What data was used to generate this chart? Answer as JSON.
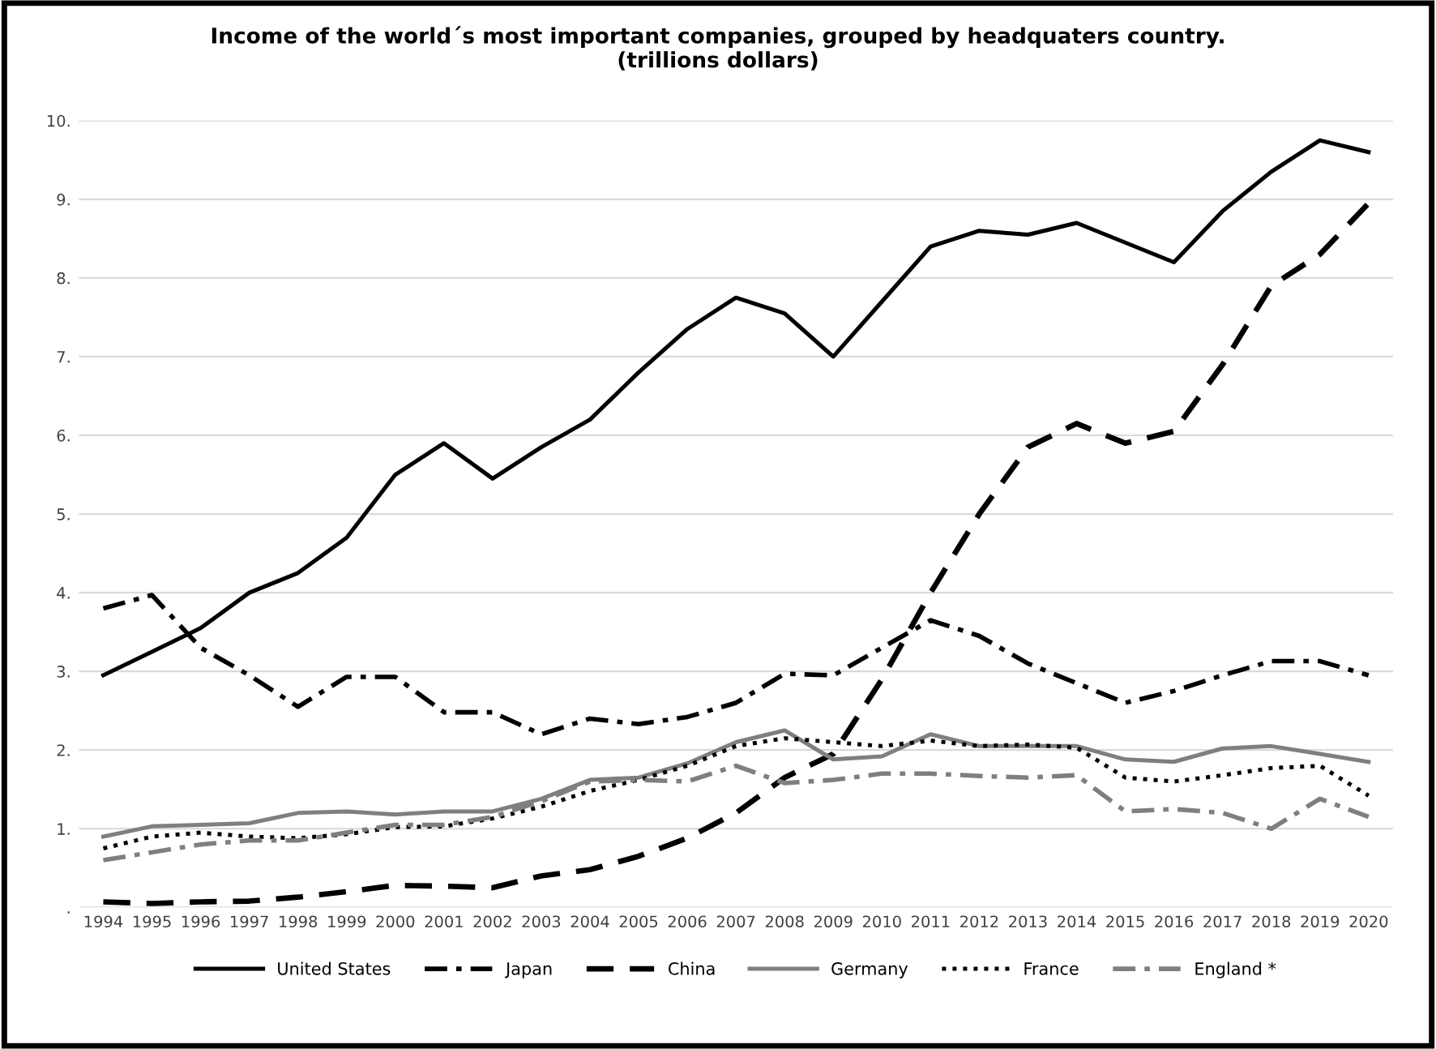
{
  "chart_data": {
    "type": "line",
    "title": "Income of the world´s most important companies, grouped by headquaters country.\n(trillions dollars)",
    "categories": [
      "1994",
      "1995",
      "1996",
      "1997",
      "1998",
      "1999",
      "2000",
      "2001",
      "2002",
      "2003",
      "2004",
      "2005",
      "2006",
      "2007",
      "2008",
      "2009",
      "2010",
      "2011",
      "2012",
      "2013",
      "2014",
      "2015",
      "2016",
      "2017",
      "2018",
      "2019",
      "2020"
    ],
    "series": [
      {
        "name": "United States",
        "color": "#000000",
        "line_style": "solid",
        "values": [
          2.95,
          3.25,
          3.55,
          4.0,
          4.25,
          4.7,
          5.5,
          5.9,
          5.45,
          5.85,
          6.2,
          6.8,
          7.35,
          7.75,
          7.55,
          7.0,
          7.7,
          8.4,
          8.6,
          8.55,
          8.7,
          8.45,
          8.2,
          8.85,
          9.35,
          9.75,
          9.6
        ]
      },
      {
        "name": "Japan",
        "color": "#000000",
        "line_style": "dashdot",
        "values": [
          3.8,
          3.97,
          3.3,
          2.95,
          2.55,
          2.93,
          2.93,
          2.48,
          2.48,
          2.2,
          2.4,
          2.33,
          2.42,
          2.6,
          2.97,
          2.95,
          3.3,
          3.65,
          3.45,
          3.1,
          2.85,
          2.6,
          2.75,
          2.95,
          3.13,
          3.13,
          2.95
        ]
      },
      {
        "name": "China",
        "color": "#000000",
        "line_style": "dashed",
        "values": [
          0.07,
          0.05,
          0.07,
          0.08,
          0.13,
          0.2,
          0.28,
          0.27,
          0.25,
          0.4,
          0.48,
          0.65,
          0.88,
          1.2,
          1.65,
          1.95,
          2.9,
          4.0,
          5.0,
          5.85,
          6.15,
          5.9,
          6.05,
          6.9,
          7.9,
          8.3,
          8.95
        ]
      },
      {
        "name": "Germany",
        "color": "#7f7f7f",
        "line_style": "solid",
        "values": [
          0.9,
          1.03,
          1.05,
          1.07,
          1.2,
          1.22,
          1.18,
          1.22,
          1.22,
          1.38,
          1.62,
          1.65,
          1.83,
          2.1,
          2.25,
          1.88,
          1.92,
          2.2,
          2.05,
          2.05,
          2.05,
          1.88,
          1.85,
          2.02,
          2.05,
          1.95,
          1.85
        ]
      },
      {
        "name": "France",
        "color": "#000000",
        "line_style": "dotted",
        "values": [
          0.75,
          0.9,
          0.95,
          0.9,
          0.88,
          0.93,
          1.02,
          1.03,
          1.13,
          1.28,
          1.48,
          1.62,
          1.8,
          2.05,
          2.15,
          2.1,
          2.05,
          2.12,
          2.05,
          2.07,
          2.03,
          1.65,
          1.6,
          1.68,
          1.77,
          1.8,
          1.42
        ]
      },
      {
        "name": "England *",
        "color": "#7f7f7f",
        "line_style": "dashdot",
        "values": [
          0.6,
          0.7,
          0.8,
          0.85,
          0.85,
          0.95,
          1.05,
          1.05,
          1.15,
          1.35,
          1.6,
          1.62,
          1.6,
          1.8,
          1.58,
          1.62,
          1.7,
          1.7,
          1.67,
          1.65,
          1.68,
          1.22,
          1.25,
          1.2,
          1.0,
          1.38,
          1.15
        ]
      }
    ],
    "ylim": [
      0,
      10
    ],
    "yticks": [
      {
        "value": 0,
        "label": "."
      },
      {
        "value": 1,
        "label": "1."
      },
      {
        "value": 2,
        "label": "2."
      },
      {
        "value": 3,
        "label": "3."
      },
      {
        "value": 4,
        "label": "4."
      },
      {
        "value": 5,
        "label": "5."
      },
      {
        "value": 6,
        "label": "6."
      },
      {
        "value": 7,
        "label": "7."
      },
      {
        "value": 8,
        "label": "8."
      },
      {
        "value": 9,
        "label": "9."
      },
      {
        "value": 10,
        "label": "10."
      }
    ],
    "grid": "y",
    "legend": "bottom"
  }
}
